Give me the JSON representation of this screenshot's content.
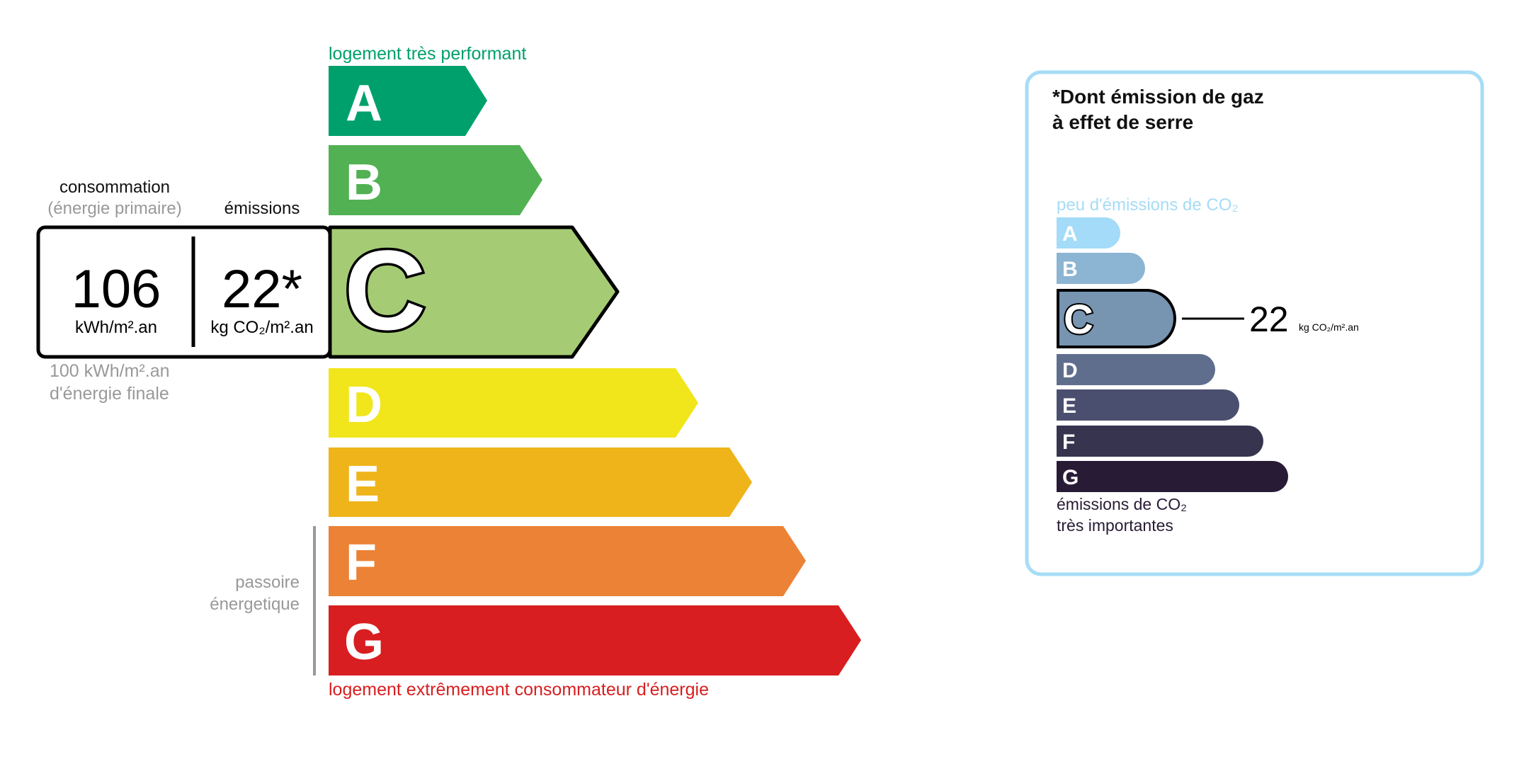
{
  "dpe": {
    "top_label": "logement très performant",
    "bottom_label": "logement extrêmement consommateur d'énergie",
    "consumption_header": "consommation",
    "consumption_subheader": "(énergie primaire)",
    "emissions_header": "émissions",
    "consumption_value": "106",
    "consumption_unit": "kWh/m².an",
    "emissions_value": "22*",
    "emissions_unit": "kg CO₂/m².an",
    "final_energy_line1": "100 kWh/m².an",
    "final_energy_line2": "d'énergie finale",
    "passoire_line1": "passoire",
    "passoire_line2": "énergetique",
    "selected_class": "C",
    "classes": [
      {
        "letter": "A",
        "color": "#00a06d"
      },
      {
        "letter": "B",
        "color": "#52b153"
      },
      {
        "letter": "C",
        "color": "#a5cc74"
      },
      {
        "letter": "D",
        "color": "#f1e61c"
      },
      {
        "letter": "E",
        "color": "#efb41a"
      },
      {
        "letter": "F",
        "color": "#eb8235"
      },
      {
        "letter": "G",
        "color": "#d81e20"
      }
    ]
  },
  "ges": {
    "title_line1": "*Dont émission de gaz",
    "title_line2": "à effet de serre",
    "top_label": "peu d'émissions de CO₂",
    "bottom_line1": "émissions de CO₂",
    "bottom_line2": "très importantes",
    "value": "22",
    "unit": "kg CO₂/m².an",
    "selected_class": "C",
    "border_color": "#a6dcf6",
    "classes": [
      {
        "letter": "A",
        "color": "#a4dbf8"
      },
      {
        "letter": "B",
        "color": "#8cb4d3"
      },
      {
        "letter": "C",
        "color": "#7794b1"
      },
      {
        "letter": "D",
        "color": "#5f6e8d"
      },
      {
        "letter": "E",
        "color": "#4b4f6f"
      },
      {
        "letter": "F",
        "color": "#37344f"
      },
      {
        "letter": "G",
        "color": "#281b35"
      }
    ]
  }
}
